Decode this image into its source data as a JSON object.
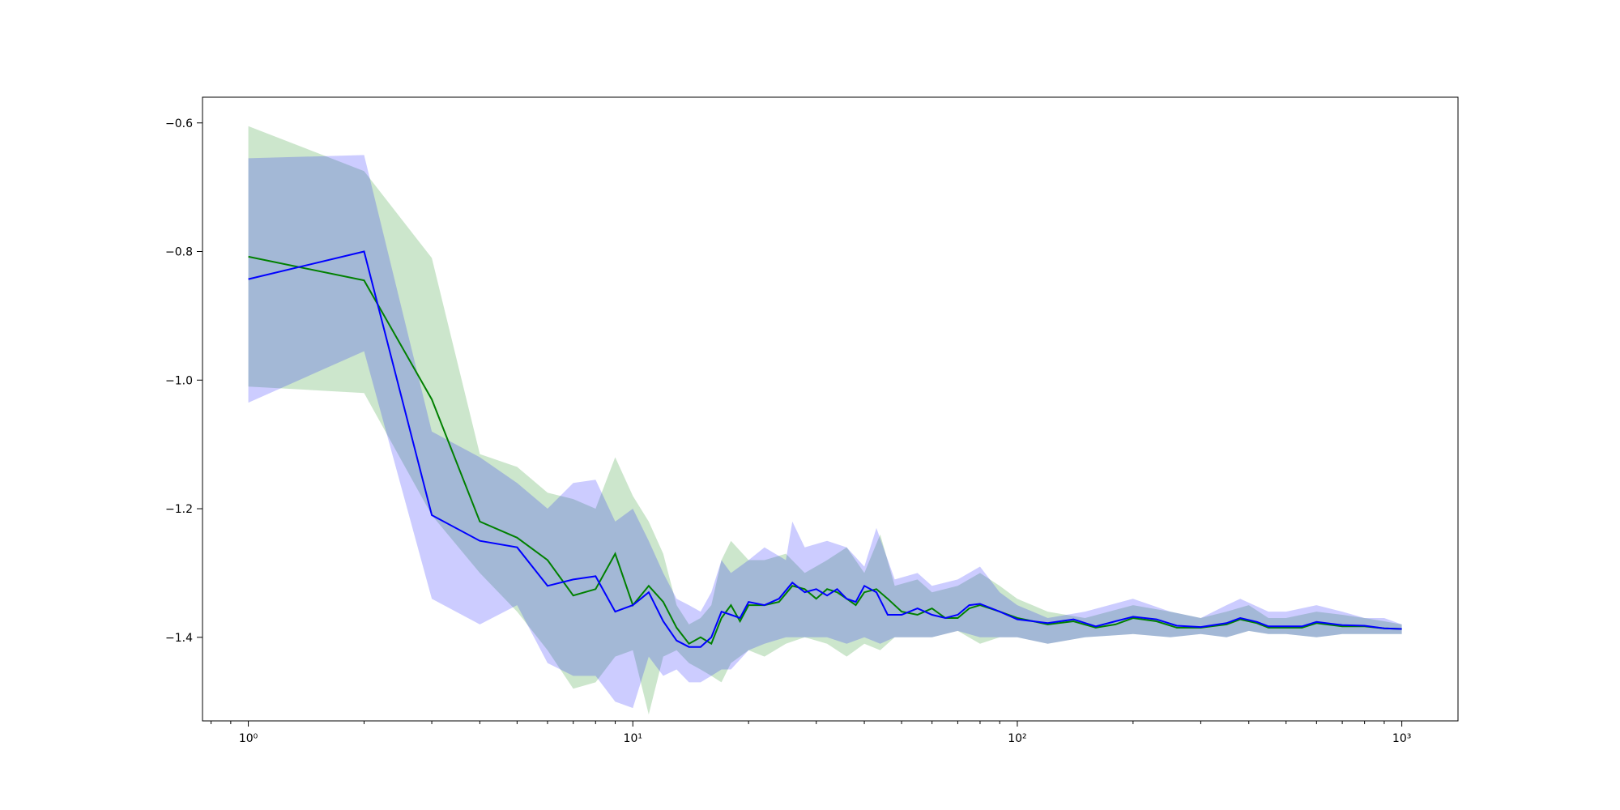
{
  "chart_data": {
    "type": "line",
    "xscale": "log",
    "xlim": [
      0.76,
      1400
    ],
    "ylim": [
      -1.53,
      -0.56
    ],
    "grid": false,
    "legend": "none",
    "title": "",
    "xlabel": "",
    "ylabel": "",
    "x_ticks": [
      {
        "value": 1,
        "label": "10⁰"
      },
      {
        "value": 10,
        "label": "10¹"
      },
      {
        "value": 100,
        "label": "10²"
      },
      {
        "value": 1000,
        "label": "10³"
      }
    ],
    "y_ticks": [
      {
        "value": -0.6,
        "label": "−0.6"
      },
      {
        "value": -0.8,
        "label": "−0.8"
      },
      {
        "value": -1.0,
        "label": "−1.0"
      },
      {
        "value": -1.2,
        "label": "−1.2"
      },
      {
        "value": -1.4,
        "label": "−1.4"
      }
    ],
    "bands": [
      {
        "color": "#008000",
        "opacity": 0.2,
        "upper": [
          [
            1,
            -0.605
          ],
          [
            2,
            -0.675
          ],
          [
            3,
            -0.81
          ],
          [
            4,
            -1.115
          ],
          [
            5,
            -1.135
          ],
          [
            6,
            -1.175
          ],
          [
            7,
            -1.185
          ],
          [
            8,
            -1.2
          ],
          [
            9,
            -1.12
          ],
          [
            10,
            -1.18
          ],
          [
            11,
            -1.22
          ],
          [
            12,
            -1.27
          ],
          [
            13,
            -1.35
          ],
          [
            14,
            -1.38
          ],
          [
            15,
            -1.37
          ],
          [
            16,
            -1.35
          ],
          [
            17,
            -1.28
          ],
          [
            18,
            -1.25
          ],
          [
            20,
            -1.28
          ],
          [
            22,
            -1.28
          ],
          [
            25,
            -1.27
          ],
          [
            28,
            -1.3
          ],
          [
            32,
            -1.28
          ],
          [
            36,
            -1.26
          ],
          [
            40,
            -1.3
          ],
          [
            44,
            -1.24
          ],
          [
            48,
            -1.32
          ],
          [
            55,
            -1.31
          ],
          [
            60,
            -1.33
          ],
          [
            70,
            -1.32
          ],
          [
            80,
            -1.3
          ],
          [
            90,
            -1.32
          ],
          [
            100,
            -1.34
          ],
          [
            120,
            -1.36
          ],
          [
            150,
            -1.37
          ],
          [
            200,
            -1.35
          ],
          [
            250,
            -1.36
          ],
          [
            300,
            -1.37
          ],
          [
            350,
            -1.36
          ],
          [
            400,
            -1.35
          ],
          [
            450,
            -1.37
          ],
          [
            500,
            -1.37
          ],
          [
            600,
            -1.36
          ],
          [
            700,
            -1.365
          ],
          [
            800,
            -1.37
          ],
          [
            900,
            -1.375
          ],
          [
            1000,
            -1.38
          ]
        ],
        "lower": [
          [
            1,
            -1.01
          ],
          [
            2,
            -1.02
          ],
          [
            3,
            -1.21
          ],
          [
            4,
            -1.3
          ],
          [
            5,
            -1.36
          ],
          [
            6,
            -1.42
          ],
          [
            7,
            -1.48
          ],
          [
            8,
            -1.47
          ],
          [
            9,
            -1.43
          ],
          [
            10,
            -1.42
          ],
          [
            11,
            -1.52
          ],
          [
            12,
            -1.43
          ],
          [
            13,
            -1.42
          ],
          [
            14,
            -1.44
          ],
          [
            15,
            -1.45
          ],
          [
            16,
            -1.46
          ],
          [
            17,
            -1.47
          ],
          [
            18,
            -1.44
          ],
          [
            20,
            -1.42
          ],
          [
            22,
            -1.43
          ],
          [
            25,
            -1.41
          ],
          [
            28,
            -1.4
          ],
          [
            32,
            -1.41
          ],
          [
            36,
            -1.43
          ],
          [
            40,
            -1.41
          ],
          [
            44,
            -1.42
          ],
          [
            48,
            -1.4
          ],
          [
            55,
            -1.4
          ],
          [
            60,
            -1.4
          ],
          [
            70,
            -1.39
          ],
          [
            80,
            -1.41
          ],
          [
            90,
            -1.4
          ],
          [
            100,
            -1.4
          ],
          [
            120,
            -1.41
          ],
          [
            150,
            -1.4
          ],
          [
            200,
            -1.395
          ],
          [
            250,
            -1.4
          ],
          [
            300,
            -1.395
          ],
          [
            350,
            -1.4
          ],
          [
            400,
            -1.39
          ],
          [
            450,
            -1.395
          ],
          [
            500,
            -1.395
          ],
          [
            600,
            -1.4
          ],
          [
            700,
            -1.395
          ],
          [
            800,
            -1.395
          ],
          [
            900,
            -1.395
          ],
          [
            1000,
            -1.395
          ]
        ]
      },
      {
        "color": "#0000ff",
        "opacity": 0.2,
        "upper": [
          [
            1,
            -0.655
          ],
          [
            2,
            -0.65
          ],
          [
            3,
            -1.08
          ],
          [
            4,
            -1.12
          ],
          [
            5,
            -1.16
          ],
          [
            6,
            -1.2
          ],
          [
            7,
            -1.16
          ],
          [
            8,
            -1.155
          ],
          [
            9,
            -1.22
          ],
          [
            10,
            -1.2
          ],
          [
            11,
            -1.25
          ],
          [
            12,
            -1.3
          ],
          [
            13,
            -1.34
          ],
          [
            14,
            -1.35
          ],
          [
            15,
            -1.36
          ],
          [
            16,
            -1.33
          ],
          [
            17,
            -1.28
          ],
          [
            18,
            -1.3
          ],
          [
            20,
            -1.28
          ],
          [
            22,
            -1.26
          ],
          [
            25,
            -1.28
          ],
          [
            26,
            -1.22
          ],
          [
            28,
            -1.26
          ],
          [
            32,
            -1.25
          ],
          [
            36,
            -1.26
          ],
          [
            40,
            -1.29
          ],
          [
            43,
            -1.23
          ],
          [
            48,
            -1.31
          ],
          [
            55,
            -1.3
          ],
          [
            60,
            -1.32
          ],
          [
            70,
            -1.31
          ],
          [
            80,
            -1.29
          ],
          [
            90,
            -1.33
          ],
          [
            100,
            -1.35
          ],
          [
            120,
            -1.37
          ],
          [
            150,
            -1.36
          ],
          [
            200,
            -1.34
          ],
          [
            250,
            -1.36
          ],
          [
            300,
            -1.37
          ],
          [
            350,
            -1.35
          ],
          [
            380,
            -1.34
          ],
          [
            450,
            -1.36
          ],
          [
            500,
            -1.36
          ],
          [
            600,
            -1.35
          ],
          [
            700,
            -1.36
          ],
          [
            800,
            -1.37
          ],
          [
            900,
            -1.37
          ],
          [
            1000,
            -1.38
          ]
        ],
        "lower": [
          [
            1,
            -1.035
          ],
          [
            2,
            -0.955
          ],
          [
            3,
            -1.34
          ],
          [
            4,
            -1.38
          ],
          [
            5,
            -1.35
          ],
          [
            6,
            -1.44
          ],
          [
            7,
            -1.46
          ],
          [
            8,
            -1.46
          ],
          [
            9,
            -1.5
          ],
          [
            10,
            -1.51
          ],
          [
            11,
            -1.43
          ],
          [
            12,
            -1.46
          ],
          [
            13,
            -1.45
          ],
          [
            14,
            -1.47
          ],
          [
            15,
            -1.47
          ],
          [
            16,
            -1.46
          ],
          [
            17,
            -1.45
          ],
          [
            18,
            -1.45
          ],
          [
            20,
            -1.42
          ],
          [
            22,
            -1.41
          ],
          [
            25,
            -1.4
          ],
          [
            28,
            -1.4
          ],
          [
            32,
            -1.4
          ],
          [
            36,
            -1.41
          ],
          [
            40,
            -1.4
          ],
          [
            44,
            -1.41
          ],
          [
            48,
            -1.4
          ],
          [
            55,
            -1.4
          ],
          [
            60,
            -1.4
          ],
          [
            70,
            -1.39
          ],
          [
            80,
            -1.4
          ],
          [
            90,
            -1.4
          ],
          [
            100,
            -1.4
          ],
          [
            120,
            -1.41
          ],
          [
            150,
            -1.4
          ],
          [
            200,
            -1.395
          ],
          [
            250,
            -1.4
          ],
          [
            300,
            -1.395
          ],
          [
            350,
            -1.4
          ],
          [
            400,
            -1.39
          ],
          [
            450,
            -1.395
          ],
          [
            500,
            -1.395
          ],
          [
            600,
            -1.4
          ],
          [
            700,
            -1.395
          ],
          [
            800,
            -1.395
          ],
          [
            900,
            -1.395
          ],
          [
            1000,
            -1.395
          ]
        ]
      }
    ],
    "series": [
      {
        "color": "#008000",
        "points": [
          [
            1,
            -0.808
          ],
          [
            2,
            -0.845
          ],
          [
            3,
            -1.03
          ],
          [
            4,
            -1.22
          ],
          [
            5,
            -1.245
          ],
          [
            6,
            -1.28
          ],
          [
            7,
            -1.335
          ],
          [
            8,
            -1.325
          ],
          [
            9,
            -1.27
          ],
          [
            10,
            -1.35
          ],
          [
            11,
            -1.32
          ],
          [
            12,
            -1.345
          ],
          [
            13,
            -1.385
          ],
          [
            14,
            -1.41
          ],
          [
            15,
            -1.4
          ],
          [
            16,
            -1.41
          ],
          [
            17,
            -1.37
          ],
          [
            18,
            -1.35
          ],
          [
            19,
            -1.375
          ],
          [
            20,
            -1.35
          ],
          [
            22,
            -1.35
          ],
          [
            24,
            -1.345
          ],
          [
            26,
            -1.32
          ],
          [
            28,
            -1.325
          ],
          [
            30,
            -1.34
          ],
          [
            32,
            -1.325
          ],
          [
            34,
            -1.33
          ],
          [
            36,
            -1.34
          ],
          [
            38,
            -1.35
          ],
          [
            40,
            -1.33
          ],
          [
            43,
            -1.325
          ],
          [
            46,
            -1.34
          ],
          [
            50,
            -1.36
          ],
          [
            55,
            -1.365
          ],
          [
            60,
            -1.355
          ],
          [
            65,
            -1.37
          ],
          [
            70,
            -1.37
          ],
          [
            75,
            -1.355
          ],
          [
            80,
            -1.35
          ],
          [
            90,
            -1.36
          ],
          [
            100,
            -1.37
          ],
          [
            110,
            -1.375
          ],
          [
            120,
            -1.38
          ],
          [
            140,
            -1.375
          ],
          [
            160,
            -1.385
          ],
          [
            180,
            -1.38
          ],
          [
            200,
            -1.37
          ],
          [
            230,
            -1.375
          ],
          [
            260,
            -1.385
          ],
          [
            300,
            -1.385
          ],
          [
            350,
            -1.38
          ],
          [
            380,
            -1.372
          ],
          [
            420,
            -1.378
          ],
          [
            450,
            -1.385
          ],
          [
            500,
            -1.385
          ],
          [
            550,
            -1.385
          ],
          [
            600,
            -1.378
          ],
          [
            700,
            -1.383
          ],
          [
            800,
            -1.383
          ],
          [
            900,
            -1.386
          ],
          [
            1000,
            -1.387
          ]
        ]
      },
      {
        "color": "#0000ff",
        "points": [
          [
            1,
            -0.843
          ],
          [
            2,
            -0.8
          ],
          [
            3,
            -1.21
          ],
          [
            4,
            -1.25
          ],
          [
            5,
            -1.26
          ],
          [
            6,
            -1.32
          ],
          [
            7,
            -1.31
          ],
          [
            8,
            -1.305
          ],
          [
            9,
            -1.36
          ],
          [
            10,
            -1.35
          ],
          [
            11,
            -1.33
          ],
          [
            12,
            -1.375
          ],
          [
            13,
            -1.405
          ],
          [
            14,
            -1.415
          ],
          [
            15,
            -1.415
          ],
          [
            16,
            -1.4
          ],
          [
            17,
            -1.36
          ],
          [
            18,
            -1.365
          ],
          [
            19,
            -1.37
          ],
          [
            20,
            -1.345
          ],
          [
            22,
            -1.35
          ],
          [
            24,
            -1.34
          ],
          [
            26,
            -1.315
          ],
          [
            28,
            -1.33
          ],
          [
            30,
            -1.325
          ],
          [
            32,
            -1.335
          ],
          [
            34,
            -1.325
          ],
          [
            36,
            -1.34
          ],
          [
            38,
            -1.345
          ],
          [
            40,
            -1.32
          ],
          [
            43,
            -1.33
          ],
          [
            46,
            -1.365
          ],
          [
            50,
            -1.365
          ],
          [
            55,
            -1.355
          ],
          [
            60,
            -1.365
          ],
          [
            65,
            -1.37
          ],
          [
            70,
            -1.365
          ],
          [
            75,
            -1.35
          ],
          [
            80,
            -1.348
          ],
          [
            90,
            -1.36
          ],
          [
            100,
            -1.372
          ],
          [
            110,
            -1.375
          ],
          [
            120,
            -1.378
          ],
          [
            140,
            -1.372
          ],
          [
            160,
            -1.383
          ],
          [
            180,
            -1.375
          ],
          [
            200,
            -1.368
          ],
          [
            230,
            -1.372
          ],
          [
            260,
            -1.382
          ],
          [
            300,
            -1.384
          ],
          [
            350,
            -1.378
          ],
          [
            380,
            -1.37
          ],
          [
            420,
            -1.376
          ],
          [
            450,
            -1.383
          ],
          [
            500,
            -1.383
          ],
          [
            550,
            -1.383
          ],
          [
            600,
            -1.376
          ],
          [
            700,
            -1.381
          ],
          [
            800,
            -1.382
          ],
          [
            900,
            -1.386
          ],
          [
            1000,
            -1.387
          ]
        ]
      }
    ]
  }
}
